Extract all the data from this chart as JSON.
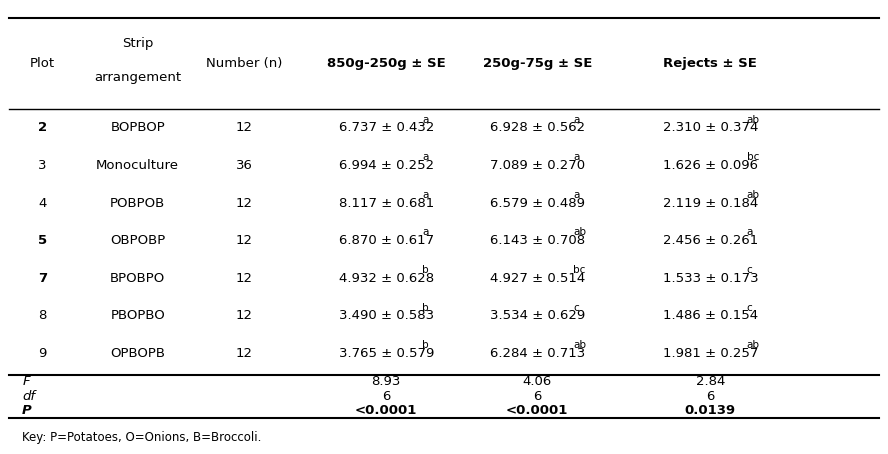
{
  "rows": [
    {
      "plot": "2",
      "bold_plot": true,
      "arrangement": "BOPBOP",
      "n": "12",
      "col4": "6.737 ± 0.432",
      "col4_sup": "a",
      "col5": "6.928 ± 0.562",
      "col5_sup": "a",
      "col6": "2.310 ± 0.374",
      "col6_sup": "ab"
    },
    {
      "plot": "3",
      "bold_plot": false,
      "arrangement": "Monoculture",
      "n": "36",
      "col4": "6.994 ± 0.252",
      "col4_sup": "a",
      "col5": "7.089 ± 0.270",
      "col5_sup": "a",
      "col6": "1.626 ± 0.096",
      "col6_sup": "bc"
    },
    {
      "plot": "4",
      "bold_plot": false,
      "arrangement": "POBPOB",
      "n": "12",
      "col4": "8.117 ± 0.681",
      "col4_sup": "a",
      "col5": "6.579 ± 0.489",
      "col5_sup": "a",
      "col6": "2.119 ± 0.184",
      "col6_sup": "ab"
    },
    {
      "plot": "5",
      "bold_plot": true,
      "arrangement": "OBPOBP",
      "n": "12",
      "col4": "6.870 ± 0.617",
      "col4_sup": "a",
      "col5": "6.143 ± 0.708",
      "col5_sup": "ab",
      "col6": "2.456 ± 0.261",
      "col6_sup": "a"
    },
    {
      "plot": "7",
      "bold_plot": true,
      "arrangement": "BPOBPO",
      "n": "12",
      "col4": "4.932 ± 0.628",
      "col4_sup": "b",
      "col5": "4.927 ± 0.514",
      "col5_sup": "bc",
      "col6": "1.533 ± 0.173",
      "col6_sup": "c"
    },
    {
      "plot": "8",
      "bold_plot": false,
      "arrangement": "PBOPBO",
      "n": "12",
      "col4": "3.490 ± 0.583",
      "col4_sup": "b",
      "col5": "3.534 ± 0.629",
      "col5_sup": "c",
      "col6": "1.486 ± 0.154",
      "col6_sup": "c"
    },
    {
      "plot": "9",
      "bold_plot": false,
      "arrangement": "OPBOPB",
      "n": "12",
      "col4": "3.765 ± 0.579",
      "col4_sup": "b",
      "col5": "6.284 ± 0.713",
      "col5_sup": "ab",
      "col6": "1.981 ± 0.257",
      "col6_sup": "ab"
    }
  ],
  "stats": [
    {
      "label": "F",
      "col4": "8.93",
      "col5": "4.06",
      "col6": "2.84",
      "bold": false
    },
    {
      "label": "df",
      "col4": "6",
      "col5": "6",
      "col6": "6",
      "bold": false
    },
    {
      "label": "P",
      "col4": "<0.0001",
      "col5": "<0.0001",
      "col6": "0.0139",
      "bold": true
    }
  ],
  "footnote": "Key: P=Potatoes, O=Onions, B=Broccoli.",
  "fontsize": 9.5,
  "sup_fontsize": 7.5
}
